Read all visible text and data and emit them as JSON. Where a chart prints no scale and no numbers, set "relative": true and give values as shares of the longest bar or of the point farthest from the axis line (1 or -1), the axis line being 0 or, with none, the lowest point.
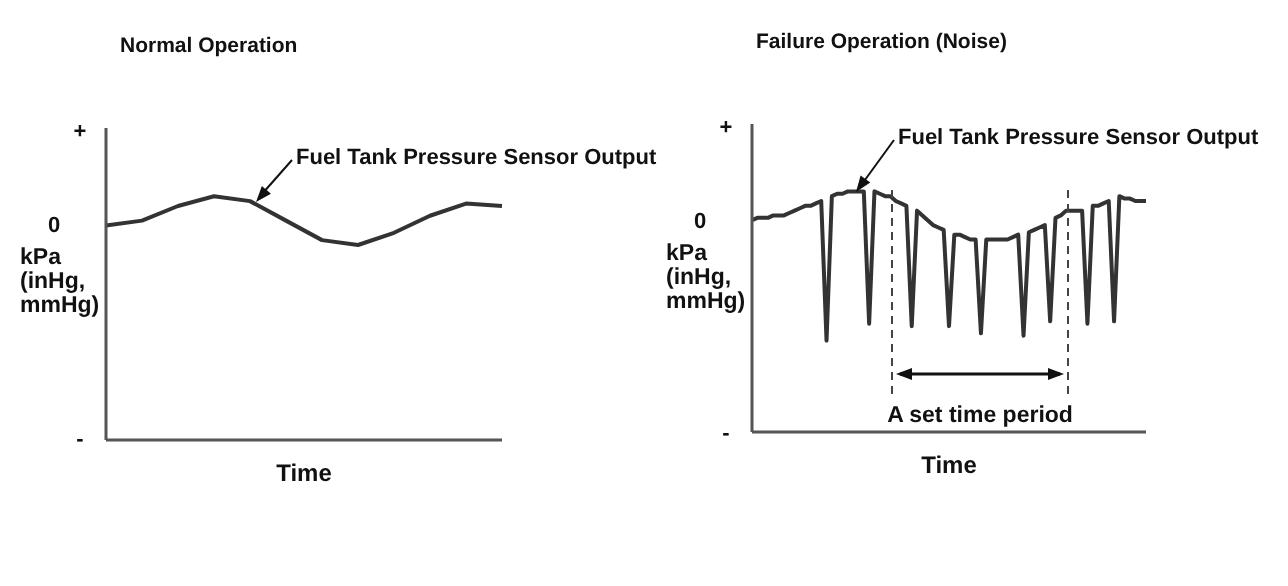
{
  "chart_data": [
    {
      "type": "line",
      "title": "Normal Operation",
      "xlabel": "Time",
      "ylabel": "kPa (inHg, mmHg)",
      "relative": true,
      "categories": [
        null,
        null,
        null,
        null,
        null,
        null,
        null,
        null,
        null,
        null,
        null,
        null
      ],
      "series": [
        {
          "color": "#333333",
          "values": [
            0.88,
            0.9,
            0.96,
            1,
            0.98,
            0.9,
            0.82,
            0.8,
            0.85,
            0.92,
            0.97,
            0.96
          ]
        }
      ],
      "annotations": [
        "+",
        "0",
        "-",
        "Fuel Tank Pressure Sensor Output"
      ]
    },
    {
      "type": "line",
      "title": "Failure Operation (Noise)",
      "xlabel": "Time",
      "ylabel": "kPa (inHg, mmHg)",
      "relative": true,
      "categories": [
        null,
        null,
        null,
        null,
        null,
        null,
        null,
        null,
        null,
        null,
        null,
        null,
        null,
        null,
        null,
        null,
        null,
        null,
        null,
        null,
        null,
        null,
        null,
        null,
        null,
        null,
        null,
        null,
        null,
        null,
        null,
        null,
        null,
        null,
        null,
        null,
        null,
        null,
        null,
        null,
        null,
        null,
        null,
        null,
        null,
        null,
        null,
        null,
        null,
        null,
        null,
        null,
        null,
        null,
        null,
        null,
        null,
        null,
        null,
        null,
        null,
        null,
        null,
        null,
        null,
        null,
        null,
        null,
        null,
        null,
        null,
        null,
        null,
        null,
        null
      ],
      "series": [
        {
          "color": "#333333",
          "values": [
            0.88,
            0.89,
            0.89,
            0.89,
            0.9,
            0.9,
            0.9,
            0.91,
            0.92,
            0.93,
            0.94,
            0.94,
            0.95,
            0.96,
            0.38,
            0.98,
            0.99,
            0.99,
            1,
            1,
            1,
            1,
            0.45,
            1,
            0.99,
            0.98,
            0.98,
            0.96,
            0.95,
            0.94,
            0.44,
            0.92,
            0.9,
            0.88,
            0.86,
            0.85,
            0.84,
            0.44,
            0.82,
            0.82,
            0.81,
            0.8,
            0.8,
            0.41,
            0.8,
            0.8,
            0.8,
            0.8,
            0.8,
            0.81,
            0.82,
            0.4,
            0.83,
            0.84,
            0.85,
            0.86,
            0.46,
            0.89,
            0.9,
            0.92,
            0.92,
            0.92,
            0.92,
            0.45,
            0.94,
            0.94,
            0.95,
            0.96,
            0.46,
            0.98,
            0.97,
            0.97,
            0.96,
            0.96,
            0.96
          ]
        }
      ],
      "annotations": [
        "+",
        "0",
        "-",
        "Fuel Tank Pressure Sensor Output",
        "A set time period"
      ]
    }
  ]
}
